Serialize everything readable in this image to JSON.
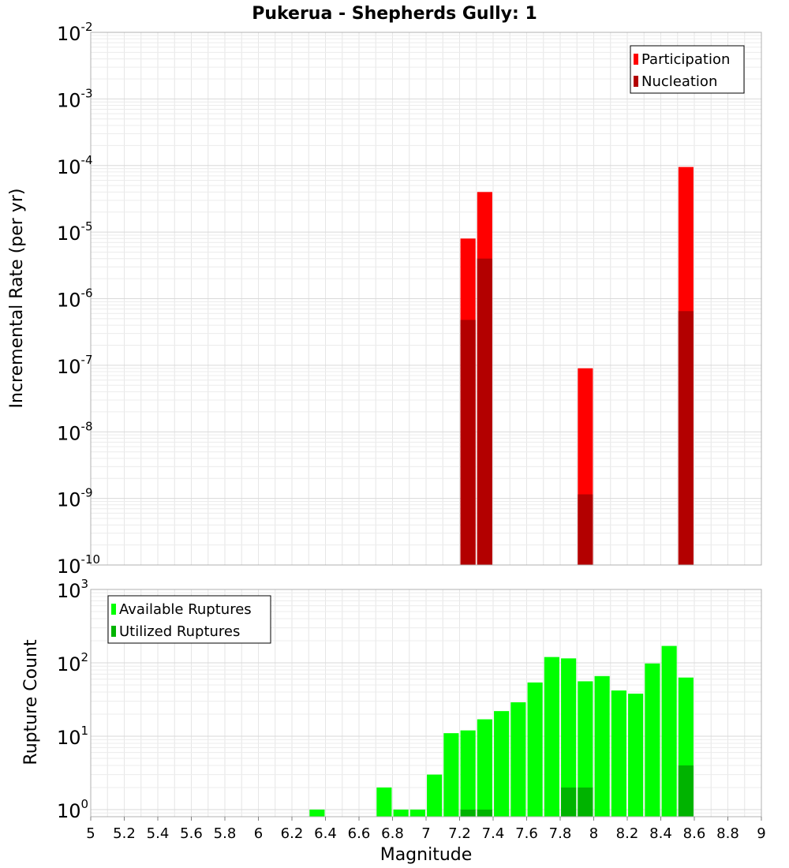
{
  "chart_data": [
    {
      "type": "bar",
      "title": "Pukerua - Shepherds Gully: 1",
      "ylabel": "Incremental Rate (per yr)",
      "yscale": "log",
      "ylim": [
        1e-10,
        0.01
      ],
      "y_tick_base": "10",
      "y_tick_exponents": [
        "-10",
        "-9",
        "-8",
        "-7",
        "-6",
        "-5",
        "-4",
        "-3",
        "-2"
      ],
      "xlim": [
        5,
        9
      ],
      "bar_width": 0.09,
      "legend": {
        "position": "top-right",
        "entries": [
          "Participation",
          "Nucleation"
        ]
      },
      "series": [
        {
          "name": "Participation",
          "color": "#ff0000",
          "x": [
            7.25,
            7.35,
            7.95,
            8.55
          ],
          "values": [
            8e-06,
            4e-05,
            9e-08,
            9.5e-05
          ]
        },
        {
          "name": "Nucleation",
          "color": "#b30000",
          "x": [
            7.25,
            7.35,
            7.95,
            8.55
          ],
          "values": [
            4.8e-07,
            4e-06,
            1.15e-09,
            6.5e-07
          ]
        }
      ]
    },
    {
      "type": "bar",
      "ylabel": "Rupture Count",
      "xlabel": "Magnitude",
      "yscale": "log",
      "ylim": [
        0.8,
        1000
      ],
      "y_tick_base": "10",
      "y_tick_exponents": [
        "0",
        "1",
        "2",
        "3"
      ],
      "xlim": [
        5,
        9
      ],
      "x_ticks": [
        "5",
        "5.2",
        "5.4",
        "5.6",
        "5.8",
        "6",
        "6.2",
        "6.4",
        "6.6",
        "6.8",
        "7",
        "7.2",
        "7.4",
        "7.6",
        "7.8",
        "8",
        "8.2",
        "8.4",
        "8.6",
        "8.8",
        "9"
      ],
      "bar_width": 0.09,
      "legend": {
        "position": "top-left",
        "entries": [
          "Available Ruptures",
          "Utilized Ruptures"
        ]
      },
      "series": [
        {
          "name": "Available Ruptures",
          "color": "#00ff00",
          "x": [
            6.35,
            6.75,
            6.85,
            6.95,
            7.05,
            7.15,
            7.25,
            7.35,
            7.45,
            7.55,
            7.65,
            7.75,
            7.85,
            7.95,
            8.05,
            8.15,
            8.25,
            8.35,
            8.45,
            8.55
          ],
          "values": [
            1,
            2,
            1,
            1,
            3,
            11,
            12,
            17,
            22,
            29,
            54,
            120,
            115,
            56,
            66,
            42,
            38,
            98,
            170,
            63
          ]
        },
        {
          "name": "Utilized Ruptures",
          "color": "#00b300",
          "x": [
            7.25,
            7.35,
            7.85,
            7.95,
            8.55
          ],
          "values": [
            1,
            1,
            2,
            2,
            4
          ]
        }
      ]
    }
  ]
}
